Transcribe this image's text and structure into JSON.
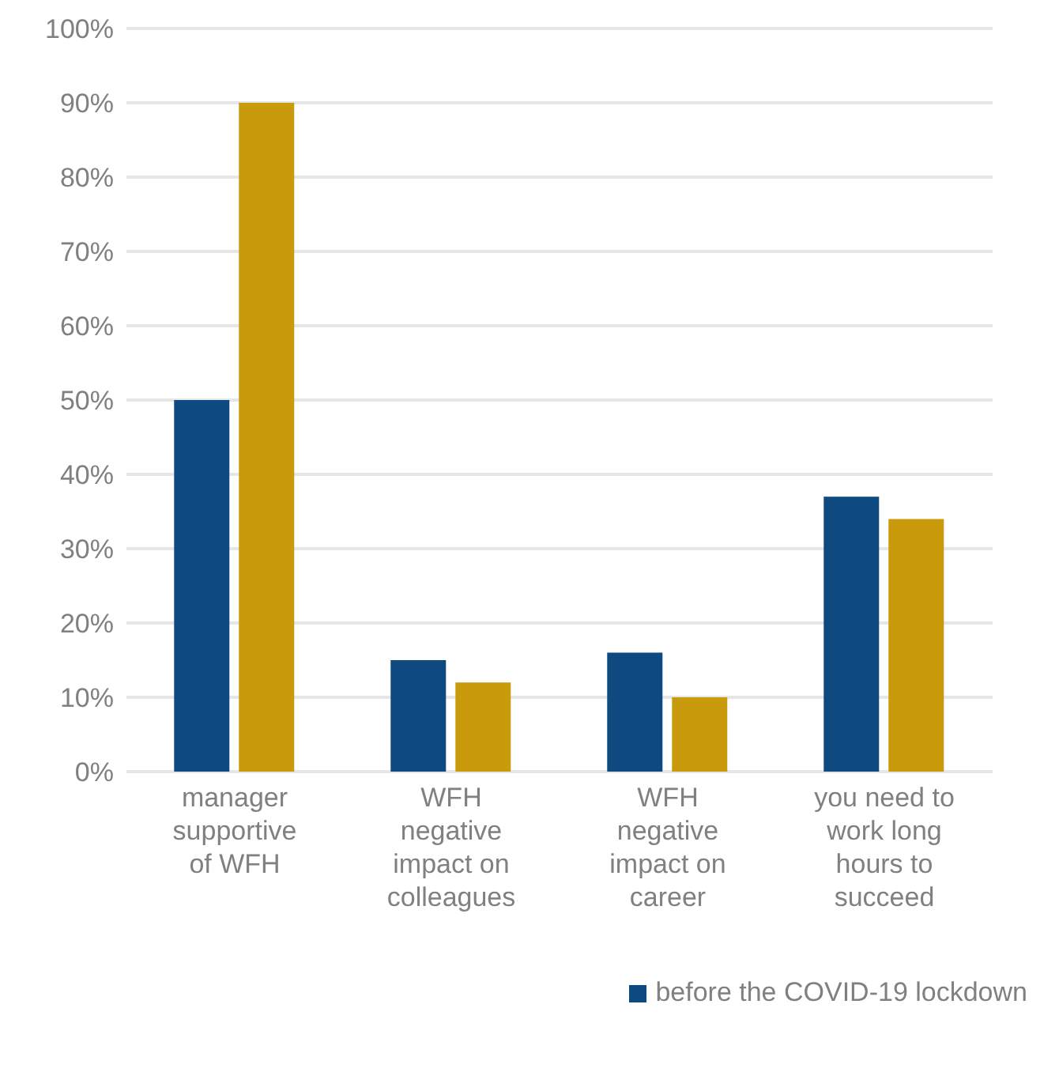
{
  "chart_data": {
    "type": "bar",
    "categories": [
      "manager supportive of WFH",
      "WFH negative impact on colleagues",
      "WFH negative impact on career",
      "you need to work long hours to succeed"
    ],
    "series": [
      {
        "name": "before the COVID-19 lockdown",
        "color": "#0e4a80",
        "values": [
          50,
          15,
          16,
          37
        ]
      },
      {
        "color": "#c99a0b",
        "values": [
          90,
          12,
          10,
          34
        ]
      }
    ],
    "ylim": [
      0,
      100
    ],
    "yticks": [
      {
        "value": 0,
        "label": "0%"
      },
      {
        "value": 10,
        "label": "10%"
      },
      {
        "value": 20,
        "label": "20%"
      },
      {
        "value": 30,
        "label": "30%"
      },
      {
        "value": 40,
        "label": "40%"
      },
      {
        "value": 50,
        "label": "50%"
      },
      {
        "value": 60,
        "label": "60%"
      },
      {
        "value": 70,
        "label": "70%"
      },
      {
        "value": 80,
        "label": "80%"
      },
      {
        "value": 90,
        "label": "90%"
      },
      {
        "value": 100,
        "label": "100%"
      }
    ],
    "grid": "y",
    "legend": "bottom right"
  }
}
